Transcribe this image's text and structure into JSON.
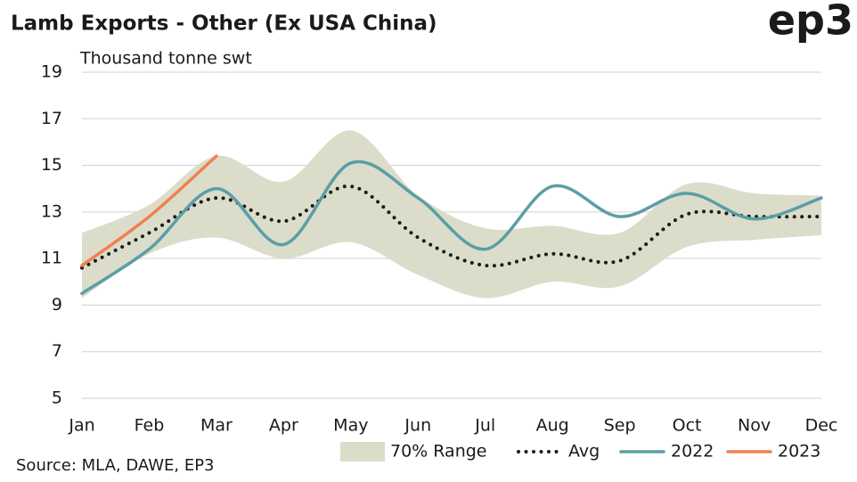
{
  "chart_data": {
    "type": "line",
    "title": "Lamb Exports - Other (Ex USA China)",
    "subtitle": "Thousand tonne swt",
    "source": "Source: MLA, DAWE, EP3",
    "logo": "ep3",
    "categories": [
      "Jan",
      "Feb",
      "Mar",
      "Apr",
      "May",
      "Jun",
      "Jul",
      "Aug",
      "Sep",
      "Oct",
      "Nov",
      "Dec"
    ],
    "range": {
      "name": "70% Range",
      "color": "#dcdccb",
      "lower": [
        9.3,
        11.2,
        11.9,
        11.0,
        11.7,
        10.3,
        9.3,
        10.0,
        9.8,
        11.5,
        11.8,
        12.0
      ],
      "upper": [
        12.1,
        13.3,
        15.4,
        14.3,
        16.5,
        13.7,
        12.3,
        12.4,
        12.1,
        14.2,
        13.8,
        13.7
      ]
    },
    "series": [
      {
        "name": "Avg",
        "color": "#1a1a1a",
        "style": "dotted",
        "values": [
          10.6,
          12.1,
          13.6,
          12.6,
          14.1,
          11.9,
          10.7,
          11.2,
          10.9,
          12.9,
          12.8,
          12.8
        ]
      },
      {
        "name": "2022",
        "color": "#5b9ea6",
        "style": "solid",
        "values": [
          9.5,
          11.4,
          14.0,
          11.6,
          15.1,
          13.6,
          11.4,
          14.1,
          12.8,
          13.8,
          12.7,
          13.6
        ]
      },
      {
        "name": "2023",
        "color": "#f0804f",
        "style": "solid",
        "values": [
          10.7,
          12.8,
          15.4,
          null,
          null,
          null,
          null,
          null,
          null,
          null,
          null,
          null
        ]
      }
    ],
    "ylim": [
      5,
      19
    ],
    "yticks": [
      5,
      7,
      9,
      11,
      13,
      15,
      17,
      19
    ],
    "grid": true
  }
}
